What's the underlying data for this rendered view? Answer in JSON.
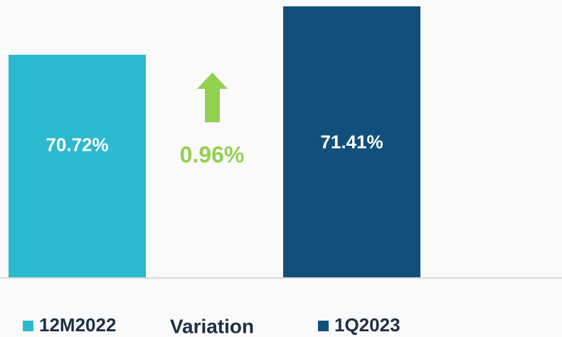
{
  "chart_data": {
    "type": "bar",
    "categories": [
      "12M2022",
      "1Q2023"
    ],
    "values": [
      70.72,
      71.41
    ],
    "value_labels": [
      "70.72%",
      "71.41%"
    ],
    "colors": [
      "#2bb9cf",
      "#12507b"
    ],
    "ylim": [
      67.55,
      71.5
    ],
    "variation": {
      "label": "Variation",
      "value": 0.96,
      "value_label": "0.96%",
      "color": "#92d050"
    }
  }
}
